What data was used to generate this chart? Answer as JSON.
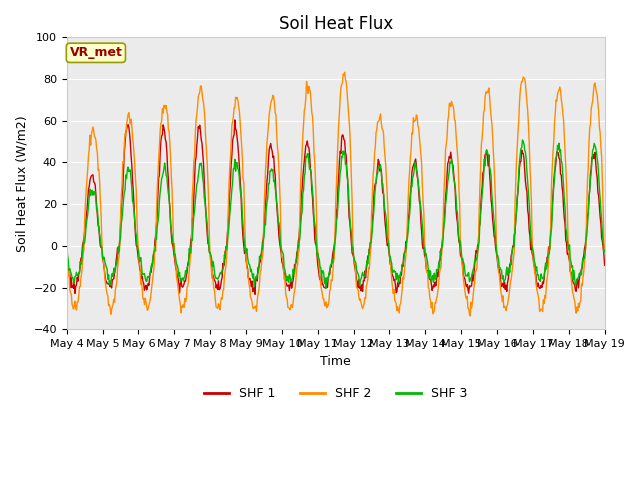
{
  "title": "Soil Heat Flux",
  "xlabel": "Time",
  "ylabel": "Soil Heat Flux (W/m2)",
  "ylim": [
    -40,
    100
  ],
  "yticks": [
    -40,
    -20,
    0,
    20,
    40,
    60,
    80,
    100
  ],
  "xtick_labels": [
    "May 4",
    "May 5",
    "May 6",
    "May 7",
    "May 8",
    "May 9",
    "May 10",
    "May 11",
    "May 12",
    "May 13",
    "May 14",
    "May 15",
    "May 16",
    "May 17",
    "May 18",
    "May 19"
  ],
  "n_days": 15,
  "pts_per_day": 48,
  "color_shf1": "#cc0000",
  "color_shf2": "#ff8c00",
  "color_shf3": "#00bb00",
  "legend_labels": [
    "SHF 1",
    "SHF 2",
    "SHF 3"
  ],
  "plot_bg_color": "#ebebeb",
  "annotation_text": "VR_met",
  "annotation_color": "#990000",
  "annotation_bg": "#ffffcc",
  "annotation_border": "#999900",
  "title_fontsize": 12,
  "label_fontsize": 9,
  "tick_fontsize": 8
}
